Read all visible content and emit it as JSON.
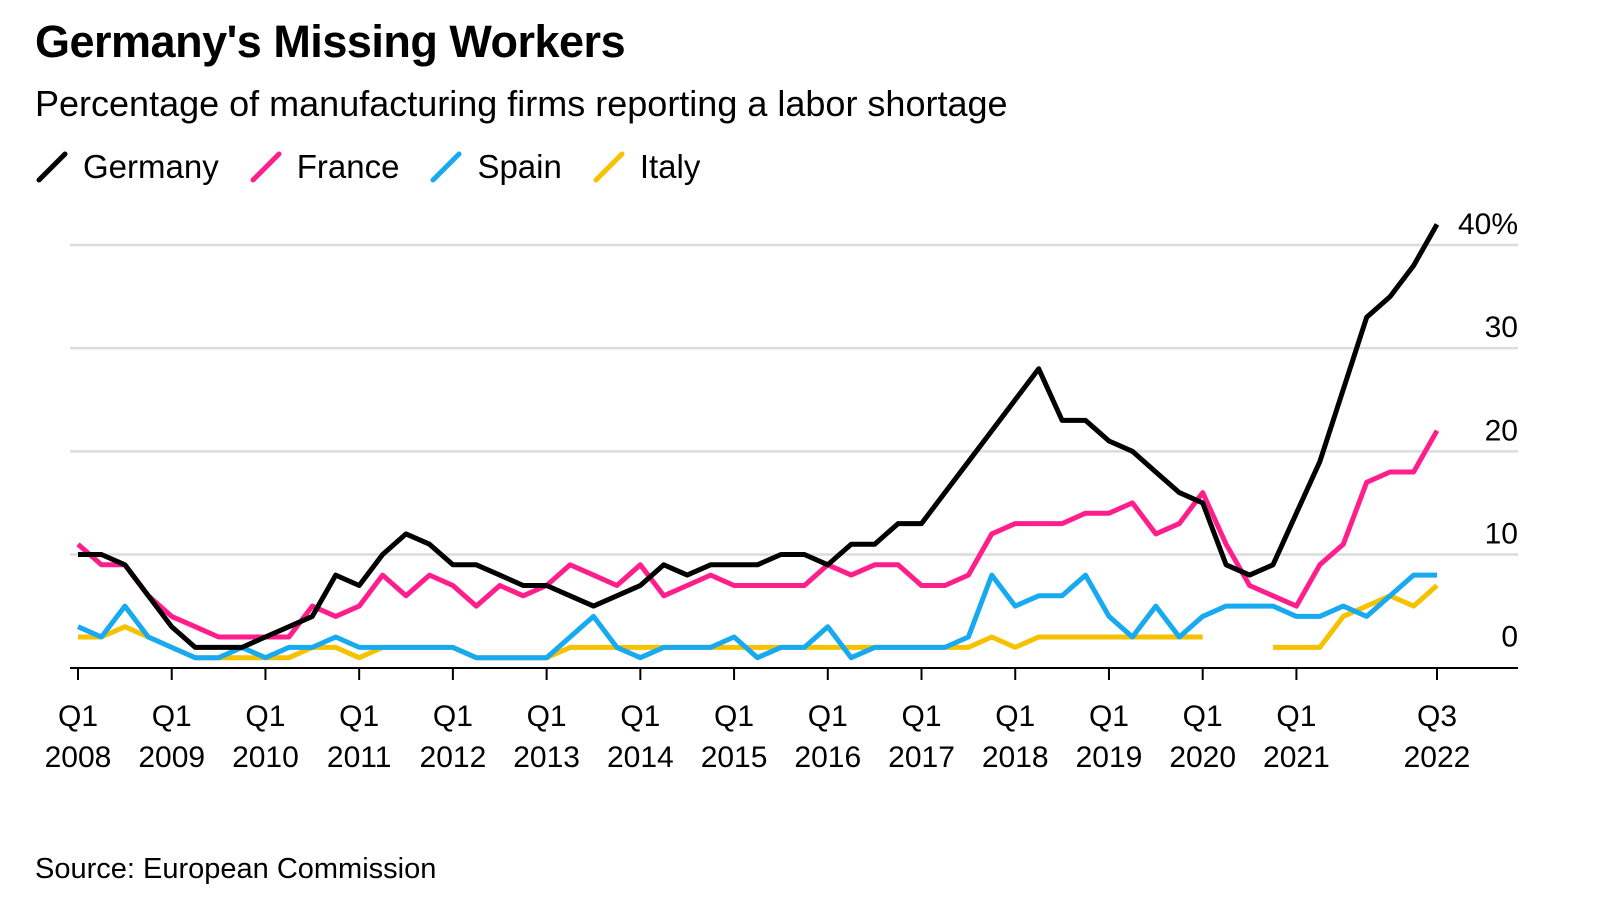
{
  "header": {
    "title": "Germany's Missing Workers",
    "subtitle": "Percentage of manufacturing firms reporting a labor shortage"
  },
  "footer": {
    "source": "Source: European Commission"
  },
  "chart_data": {
    "type": "line",
    "title": "Germany's Missing Workers",
    "subtitle": "Percentage of manufacturing firms reporting a labor shortage",
    "xlabel": "",
    "ylabel": "",
    "x_start": "2008-Q1",
    "x_end": "2022-Q3",
    "x_tick_labels": [
      {
        "line1": "Q1",
        "line2": "2008"
      },
      {
        "line1": "Q1",
        "line2": "2009"
      },
      {
        "line1": "Q1",
        "line2": "2010"
      },
      {
        "line1": "Q1",
        "line2": "2011"
      },
      {
        "line1": "Q1",
        "line2": "2012"
      },
      {
        "line1": "Q1",
        "line2": "2013"
      },
      {
        "line1": "Q1",
        "line2": "2014"
      },
      {
        "line1": "Q1",
        "line2": "2015"
      },
      {
        "line1": "Q1",
        "line2": "2016"
      },
      {
        "line1": "Q1",
        "line2": "2017"
      },
      {
        "line1": "Q1",
        "line2": "2018"
      },
      {
        "line1": "Q1",
        "line2": "2019"
      },
      {
        "line1": "Q1",
        "line2": "2020"
      },
      {
        "line1": "Q1",
        "line2": "2021"
      },
      {
        "line1": "Q3",
        "line2": "2022"
      }
    ],
    "x_tick_quarters": [
      "2008-Q1",
      "2009-Q1",
      "2010-Q1",
      "2011-Q1",
      "2012-Q1",
      "2013-Q1",
      "2014-Q1",
      "2015-Q1",
      "2016-Q1",
      "2017-Q1",
      "2018-Q1",
      "2019-Q1",
      "2020-Q1",
      "2021-Q1",
      "2022-Q3"
    ],
    "y_ticks": [
      {
        "value": 0,
        "label": "0"
      },
      {
        "value": 10,
        "label": "10"
      },
      {
        "value": 20,
        "label": "20"
      },
      {
        "value": 30,
        "label": "30"
      },
      {
        "value": 40,
        "label": "40%"
      }
    ],
    "ylim": [
      -1,
      44
    ],
    "grid": true,
    "legend_position": "top-left",
    "series": [
      {
        "name": "Germany",
        "color": "#000000",
        "values": [
          10,
          10,
          9,
          6,
          3,
          1,
          1,
          1,
          2,
          3,
          4,
          8,
          7,
          10,
          12,
          11,
          9,
          9,
          8,
          7,
          7,
          6,
          5,
          6,
          7,
          9,
          8,
          9,
          9,
          9,
          10,
          10,
          9,
          11,
          11,
          13,
          13,
          16,
          19,
          22,
          25,
          28,
          23,
          23,
          21,
          20,
          18,
          16,
          15,
          9,
          8,
          9,
          14,
          19,
          26,
          33,
          35,
          38,
          42
        ]
      },
      {
        "name": "France",
        "color": "#ff1e8c",
        "values": [
          11,
          9,
          9,
          6,
          4,
          3,
          2,
          2,
          2,
          2,
          5,
          4,
          5,
          8,
          6,
          8,
          7,
          5,
          7,
          6,
          7,
          9,
          8,
          7,
          9,
          6,
          7,
          8,
          7,
          7,
          7,
          7,
          9,
          8,
          9,
          9,
          7,
          7,
          8,
          12,
          13,
          13,
          13,
          14,
          14,
          15,
          12,
          13,
          16,
          11,
          7,
          6,
          5,
          9,
          11,
          17,
          18,
          18,
          22
        ]
      },
      {
        "name": "Spain",
        "color": "#17aaf0",
        "values": [
          3,
          2,
          5,
          2,
          1,
          0,
          0,
          1,
          0,
          1,
          1,
          2,
          1,
          1,
          1,
          1,
          1,
          0,
          0,
          0,
          0,
          2,
          4,
          1,
          0,
          1,
          1,
          1,
          2,
          0,
          1,
          1,
          3,
          0,
          1,
          1,
          1,
          1,
          2,
          8,
          5,
          6,
          6,
          8,
          4,
          2,
          5,
          2,
          4,
          5,
          5,
          5,
          4,
          4,
          5,
          4,
          6,
          8,
          8
        ]
      },
      {
        "name": "Italy",
        "color": "#f6c200",
        "values": [
          2,
          2,
          3,
          2,
          1,
          0,
          0,
          0,
          0,
          0,
          1,
          1,
          0,
          1,
          1,
          1,
          1,
          0,
          0,
          0,
          0,
          1,
          1,
          1,
          1,
          1,
          1,
          1,
          1,
          1,
          1,
          1,
          1,
          1,
          1,
          1,
          1,
          1,
          1,
          2,
          1,
          2,
          2,
          2,
          2,
          2,
          2,
          2,
          2,
          null,
          null,
          1,
          1,
          1,
          4,
          5,
          6,
          5,
          7
        ]
      }
    ]
  }
}
